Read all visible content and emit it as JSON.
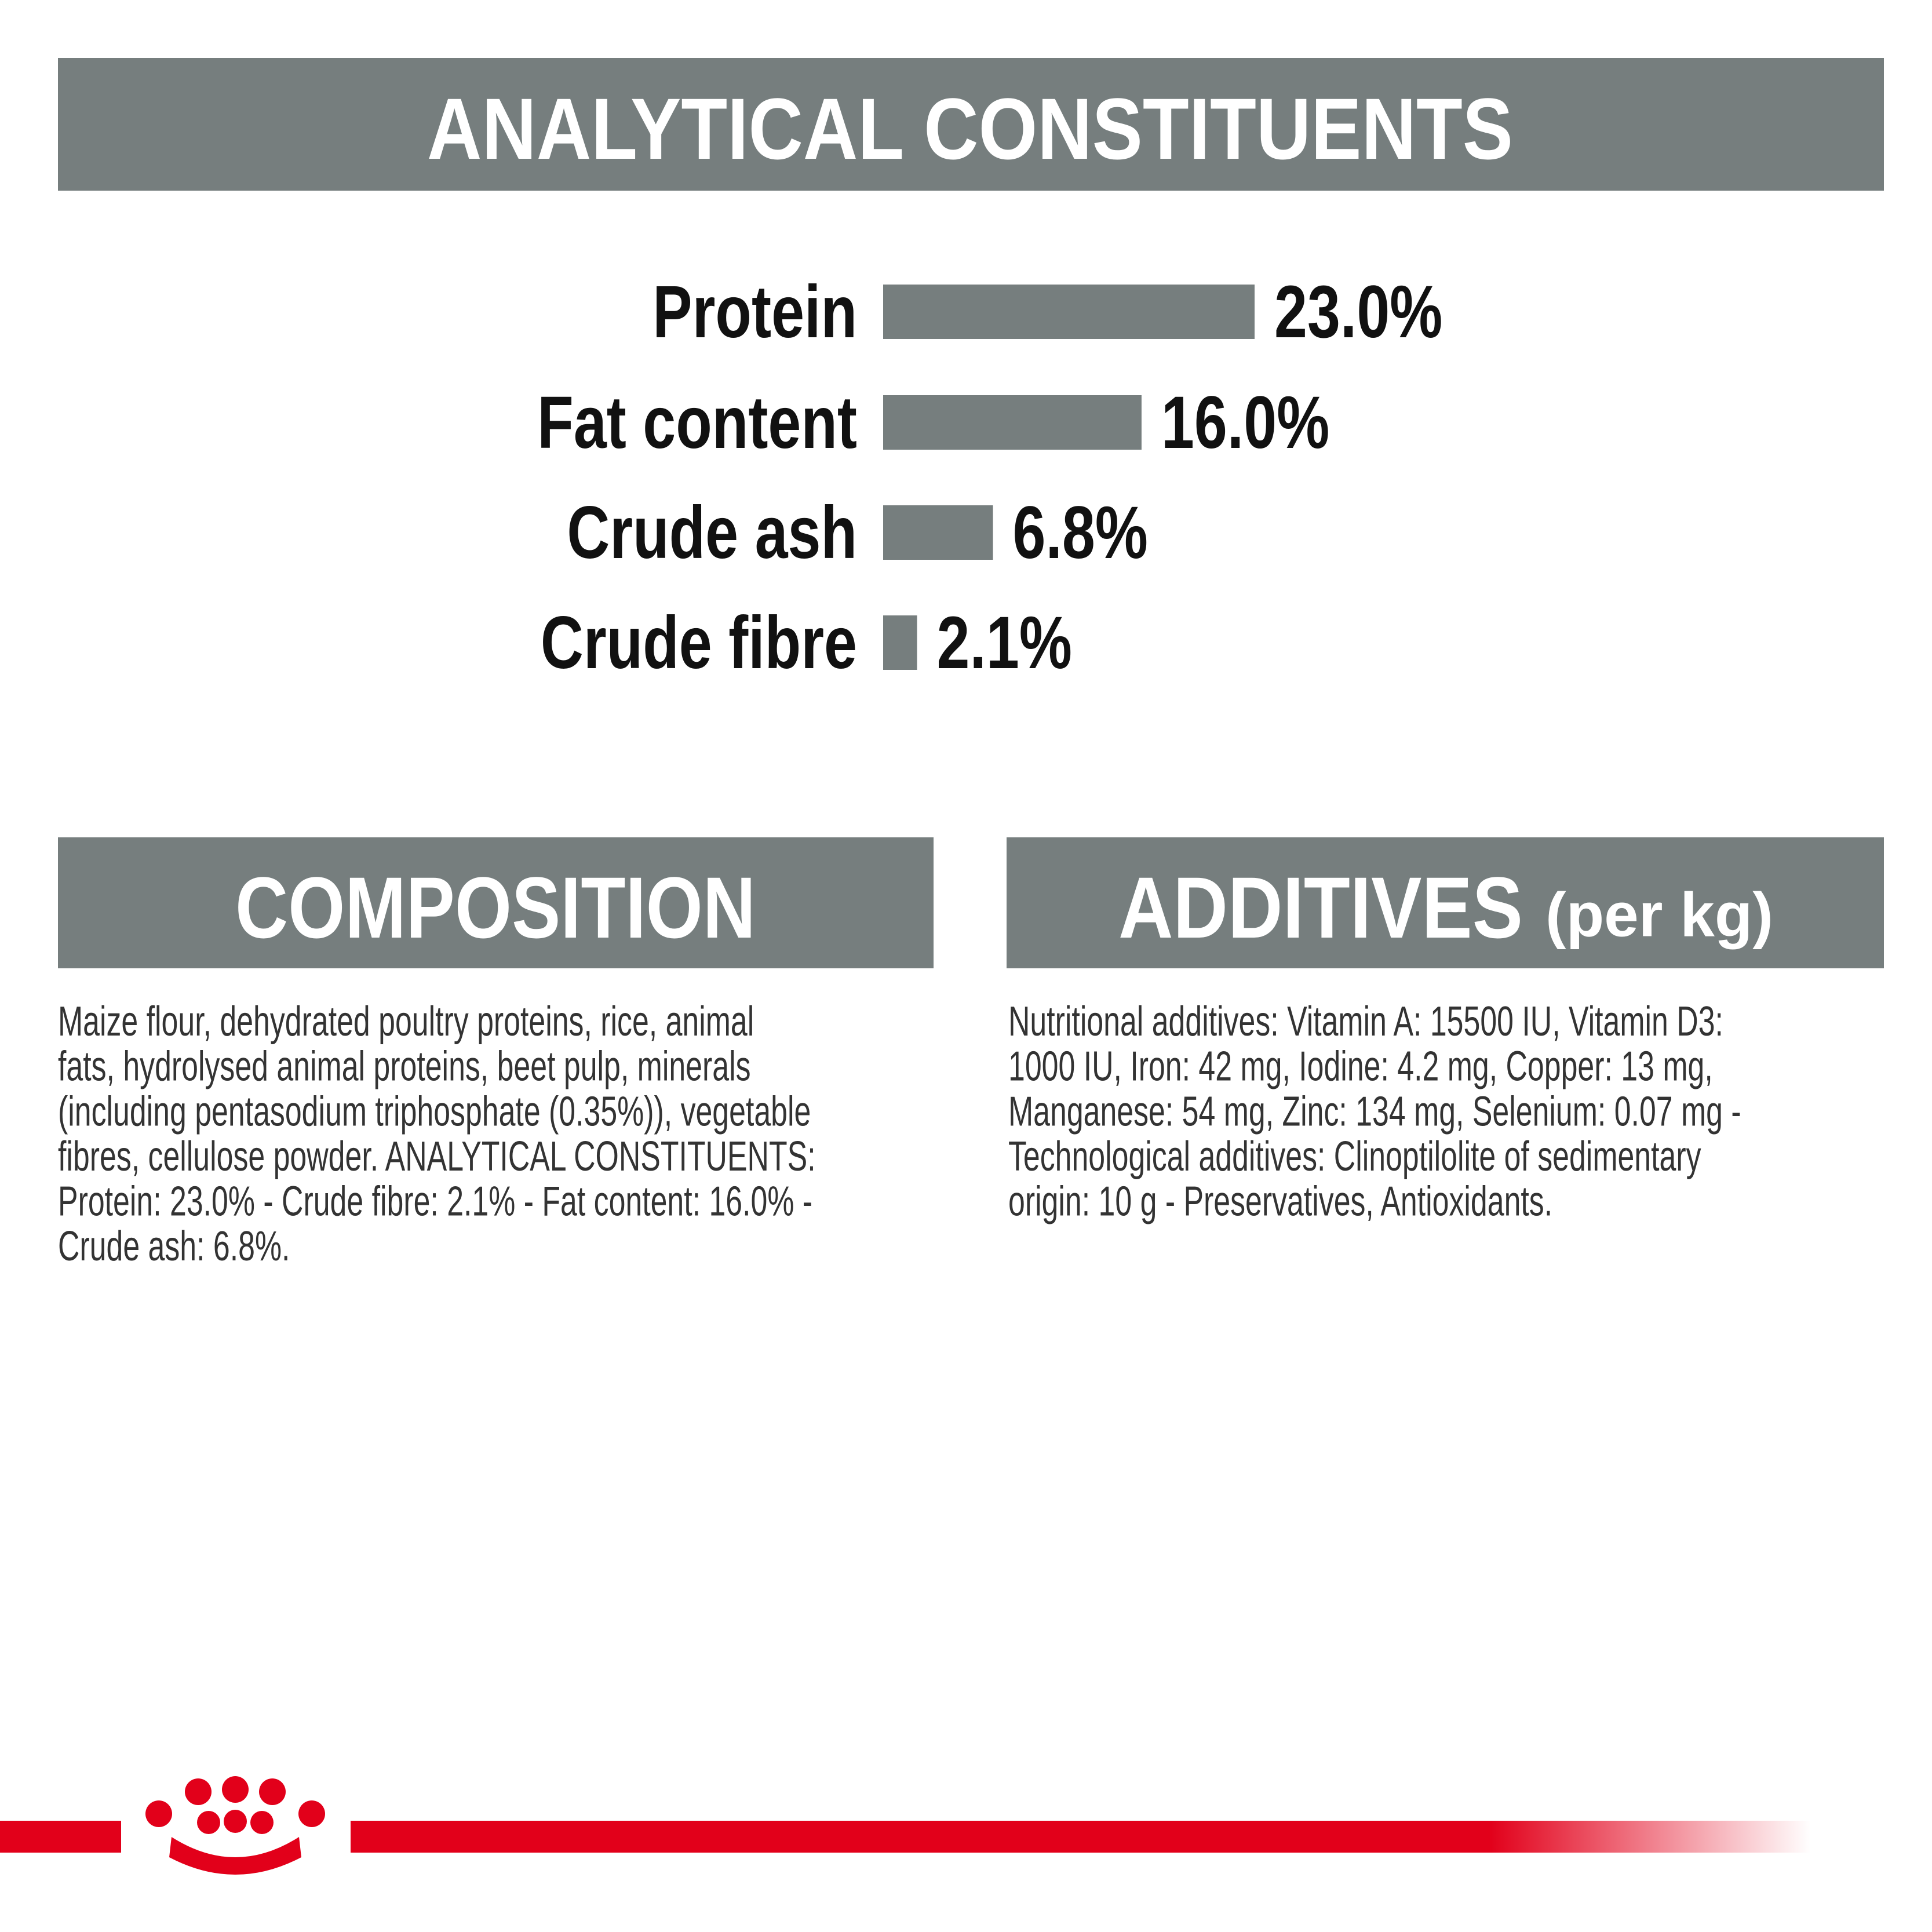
{
  "header": {
    "title": "ANALYTICAL CONSTITUENTS"
  },
  "chart_data": {
    "type": "bar",
    "orientation": "horizontal",
    "color": "#767e7e",
    "categories": [
      "Protein",
      "Fat content",
      "Crude ash",
      "Crude fibre"
    ],
    "values": [
      23.0,
      16.0,
      6.8,
      2.1
    ],
    "value_labels": [
      "23.0%",
      "16.0%",
      "6.8%",
      "2.1%"
    ]
  },
  "composition": {
    "title": "COMPOSITION",
    "lines": [
      "Maize flour, dehydrated poultry proteins, rice, animal",
      "fats, hydrolysed animal proteins, beet pulp, minerals",
      "(including pentasodium triphosphate (0.35%)), vegetable",
      "fibres, cellulose powder. ANALYTICAL CONSTITUENTS:",
      "Protein: 23.0% - Crude fibre: 2.1% - Fat content: 16.0% -",
      "Crude ash: 6.8%."
    ]
  },
  "additives": {
    "title": "ADDITIVES",
    "title_suffix": "(per kg)",
    "lines": [
      "Nutritional additives: Vitamin A: 15500 IU, Vitamin D3:",
      "1000 IU, Iron: 42 mg, Iodine: 4.2 mg, Copper: 13 mg,",
      "Manganese: 54 mg, Zinc: 134 mg, Selenium: 0.07 mg -",
      "Technological additives: Clinoptilolite of sedimentary",
      "origin: 10 g - Preservatives, Antioxidants."
    ]
  }
}
